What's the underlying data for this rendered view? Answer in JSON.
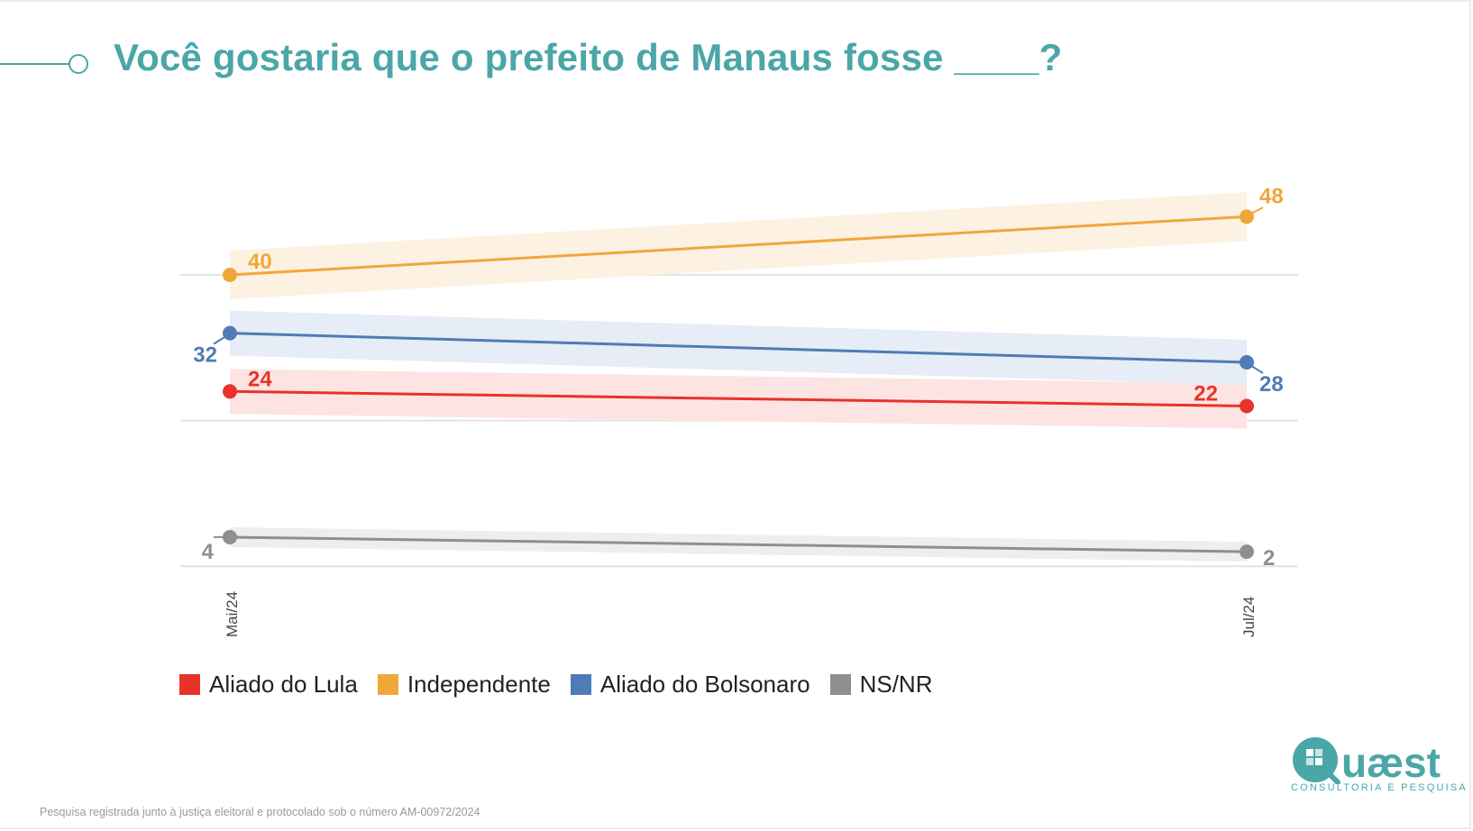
{
  "title": "Você gostaria que o prefeito de Manaus fosse ____?",
  "footer": "Pesquisa registrada junto à justiça eleitoral e protocolado sob o número AM-00972/2024",
  "logo": {
    "name": "Quaest",
    "tagline": "CONSULTORIA E PESQUISA"
  },
  "colors": {
    "brand": "#4ba6a8"
  },
  "chart_data": {
    "type": "line",
    "x": [
      "Mai/24",
      "Jul/24"
    ],
    "ylim": [
      0,
      60
    ],
    "grid": true,
    "legend_position": "bottom-left",
    "series": [
      {
        "name": "Aliado do Lula",
        "values": [
          24,
          22
        ],
        "color": "#e8332a",
        "band": "#fde4e3"
      },
      {
        "name": "Independente",
        "values": [
          40,
          48
        ],
        "color": "#f0a73a",
        "band": "#fdf1e2"
      },
      {
        "name": "Aliado do Bolsonaro",
        "values": [
          32,
          28
        ],
        "color": "#4f7cb6",
        "band": "#e7edf6"
      },
      {
        "name": "NS/NR",
        "values": [
          4,
          2
        ],
        "color": "#8f8f8f",
        "band": "#eeeeee"
      }
    ]
  }
}
